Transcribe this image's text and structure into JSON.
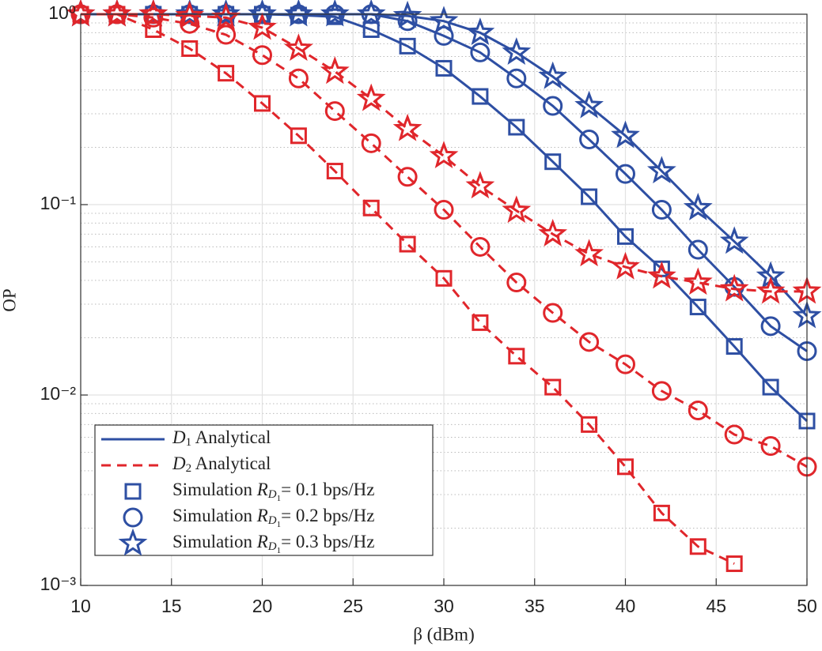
{
  "chart_data": {
    "type": "line",
    "xlabel": "β (dBm)",
    "ylabel": "OP",
    "x": [
      10,
      12,
      14,
      16,
      18,
      20,
      22,
      24,
      26,
      28,
      30,
      32,
      34,
      36,
      38,
      40,
      42,
      44,
      46,
      48,
      50
    ],
    "xlim": [
      10,
      50
    ],
    "xticks": [
      10,
      15,
      20,
      25,
      30,
      35,
      40,
      45,
      50
    ],
    "ylim": [
      0.001,
      1
    ],
    "yticks": [
      {
        "value": 1,
        "label": "10⁰"
      },
      {
        "value": 0.1,
        "label": "10⁻¹"
      },
      {
        "value": 0.01,
        "label": "10⁻²"
      },
      {
        "value": 0.001,
        "label": "10⁻³"
      }
    ],
    "log_y": true,
    "grid": true,
    "minor_grid": true,
    "series": [
      {
        "color": "#2e4fa3",
        "dash": "solid",
        "marker": "square",
        "values": [
          1,
          1,
          1,
          1,
          1,
          1,
          0.99,
          0.97,
          0.83,
          0.68,
          0.52,
          0.37,
          0.255,
          0.168,
          0.11,
          0.068,
          0.046,
          0.029,
          0.018,
          0.011,
          0.0073
        ]
      },
      {
        "color": "#2e4fa3",
        "dash": "solid",
        "marker": "circle",
        "values": [
          1,
          1,
          1,
          1,
          1,
          1,
          1,
          1,
          1,
          0.92,
          0.77,
          0.63,
          0.46,
          0.33,
          0.22,
          0.145,
          0.094,
          0.058,
          0.037,
          0.023,
          0.017
        ]
      },
      {
        "color": "#2e4fa3",
        "dash": "solid",
        "marker": "star",
        "values": [
          1,
          1,
          1,
          1,
          1,
          1,
          1,
          1,
          1,
          0.98,
          0.92,
          0.8,
          0.63,
          0.47,
          0.33,
          0.23,
          0.15,
          0.096,
          0.064,
          0.042,
          0.026
        ]
      },
      {
        "color": "#e0262b",
        "dash": "dashed",
        "marker": "square",
        "values": [
          1,
          1,
          0.83,
          0.66,
          0.49,
          0.34,
          0.23,
          0.15,
          0.096,
          0.062,
          0.041,
          0.024,
          0.016,
          0.011,
          0.007,
          0.0042,
          0.0024,
          0.0016,
          0.0013,
          null,
          null
        ]
      },
      {
        "color": "#e0262b",
        "dash": "dashed",
        "marker": "circle",
        "values": [
          1,
          1,
          0.96,
          0.89,
          0.78,
          0.61,
          0.46,
          0.31,
          0.21,
          0.14,
          0.094,
          0.06,
          0.039,
          0.027,
          0.019,
          0.0145,
          0.0105,
          0.0083,
          0.0062,
          0.0054,
          0.0042
        ]
      },
      {
        "color": "#e0262b",
        "dash": "dashed",
        "marker": "star",
        "values": [
          1,
          1,
          1,
          0.98,
          0.96,
          0.85,
          0.66,
          0.5,
          0.36,
          0.25,
          0.18,
          0.125,
          0.093,
          0.07,
          0.055,
          0.047,
          0.042,
          0.039,
          0.036,
          0.035,
          0.035
        ]
      }
    ],
    "legend_position": "lower left",
    "legend": [
      {
        "color": "#2e4fa3",
        "dash": "solid",
        "parts": [
          [
            "D",
            "italic"
          ],
          [
            "1",
            "sub"
          ],
          [
            " Analytical",
            "normal"
          ]
        ]
      },
      {
        "color": "#e0262b",
        "dash": "dashed",
        "parts": [
          [
            "D",
            "italic"
          ],
          [
            "2",
            "sub"
          ],
          [
            " Analytical",
            "normal"
          ]
        ]
      },
      {
        "color": "#2e4fa3",
        "marker": "square",
        "parts": [
          [
            "Simulation ",
            "normal"
          ],
          [
            "R",
            "italic"
          ],
          [
            "D",
            "subitalic"
          ],
          [
            "1",
            "subsub"
          ],
          [
            "= 0.1 bps/Hz",
            "normal"
          ]
        ]
      },
      {
        "color": "#2e4fa3",
        "marker": "circle",
        "parts": [
          [
            "Simulation ",
            "normal"
          ],
          [
            "R",
            "italic"
          ],
          [
            "D",
            "subitalic"
          ],
          [
            "1",
            "subsub"
          ],
          [
            "= 0.2 bps/Hz",
            "normal"
          ]
        ]
      },
      {
        "color": "#2e4fa3",
        "marker": "star",
        "parts": [
          [
            "Simulation ",
            "normal"
          ],
          [
            "R",
            "italic"
          ],
          [
            "D",
            "subitalic"
          ],
          [
            "1",
            "subsub"
          ],
          [
            "= 0.3 bps/Hz",
            "normal"
          ]
        ]
      }
    ]
  }
}
